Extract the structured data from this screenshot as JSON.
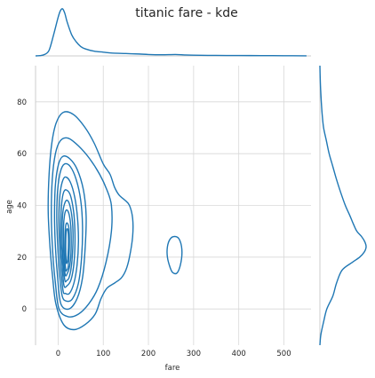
{
  "chart_data": {
    "type": "kde-joint",
    "title": "titanic fare - kde",
    "xlabel": "fare",
    "ylabel": "age",
    "xlim": [
      -50,
      560
    ],
    "ylim": [
      -14,
      94
    ],
    "xticks": [
      0,
      100,
      200,
      300,
      400,
      500
    ],
    "yticks": [
      0,
      20,
      40,
      60,
      80
    ],
    "grid": true,
    "color": "#1f77b4",
    "contours": [
      {
        "level": 1,
        "points": [
          [
            -5,
            2
          ],
          [
            -12,
            12
          ],
          [
            -18,
            24
          ],
          [
            -22,
            38
          ],
          [
            -20,
            52
          ],
          [
            -14,
            64
          ],
          [
            -4,
            72
          ],
          [
            12,
            76
          ],
          [
            35,
            75
          ],
          [
            60,
            70
          ],
          [
            80,
            64
          ],
          [
            100,
            56
          ],
          [
            115,
            52
          ],
          [
            125,
            47
          ],
          [
            135,
            44
          ],
          [
            148,
            42
          ],
          [
            158,
            40
          ],
          [
            165,
            35
          ],
          [
            165,
            28
          ],
          [
            158,
            20
          ],
          [
            150,
            15
          ],
          [
            140,
            12
          ],
          [
            125,
            10
          ],
          [
            108,
            8
          ],
          [
            95,
            4
          ],
          [
            82,
            -2
          ],
          [
            60,
            -6
          ],
          [
            35,
            -8
          ],
          [
            12,
            -6
          ]
        ]
      },
      {
        "level": 2,
        "points": [
          [
            2,
            0
          ],
          [
            -6,
            10
          ],
          [
            -12,
            22
          ],
          [
            -15,
            36
          ],
          [
            -13,
            50
          ],
          [
            -6,
            60
          ],
          [
            5,
            65
          ],
          [
            22,
            66
          ],
          [
            45,
            63
          ],
          [
            70,
            58
          ],
          [
            92,
            52
          ],
          [
            108,
            46
          ],
          [
            118,
            40
          ],
          [
            118,
            30
          ],
          [
            106,
            18
          ],
          [
            88,
            8
          ],
          [
            68,
            2
          ],
          [
            45,
            -2
          ],
          [
            22,
            -3
          ]
        ]
      },
      {
        "level": 3,
        "points": [
          [
            6,
            2
          ],
          [
            -1,
            12
          ],
          [
            -6,
            24
          ],
          [
            -8,
            36
          ],
          [
            -6,
            48
          ],
          [
            1,
            56
          ],
          [
            11,
            59
          ],
          [
            26,
            58
          ],
          [
            42,
            54
          ],
          [
            56,
            46
          ],
          [
            62,
            36
          ],
          [
            60,
            24
          ],
          [
            54,
            12
          ],
          [
            42,
            4
          ],
          [
            24,
            0
          ]
        ]
      },
      {
        "level": 4,
        "points": [
          [
            9,
            5
          ],
          [
            3,
            14
          ],
          [
            -1,
            25
          ],
          [
            -3,
            36
          ],
          [
            -1,
            46
          ],
          [
            5,
            53
          ],
          [
            14,
            56
          ],
          [
            27,
            55
          ],
          [
            40,
            50
          ],
          [
            50,
            42
          ],
          [
            54,
            32
          ],
          [
            52,
            20
          ],
          [
            45,
            10
          ],
          [
            32,
            4
          ],
          [
            19,
            3
          ]
        ]
      },
      {
        "level": 5,
        "points": [
          [
            11,
            7
          ],
          [
            6,
            16
          ],
          [
            3,
            26
          ],
          [
            2,
            36
          ],
          [
            4,
            44
          ],
          [
            9,
            49
          ],
          [
            16,
            51
          ],
          [
            27,
            49
          ],
          [
            37,
            43
          ],
          [
            43,
            35
          ],
          [
            45,
            26
          ],
          [
            42,
            17
          ],
          [
            35,
            10
          ],
          [
            25,
            6
          ],
          [
            16,
            6
          ]
        ]
      },
      {
        "level": 6,
        "points": [
          [
            13,
            9
          ],
          [
            9,
            17
          ],
          [
            6,
            26
          ],
          [
            6,
            34
          ],
          [
            8,
            41
          ],
          [
            12,
            45
          ],
          [
            18,
            46
          ],
          [
            27,
            44
          ],
          [
            34,
            38
          ],
          [
            37,
            31
          ],
          [
            37,
            23
          ],
          [
            34,
            16
          ],
          [
            28,
            11
          ],
          [
            20,
            9
          ]
        ]
      },
      {
        "level": 7,
        "points": [
          [
            15,
            11
          ],
          [
            11,
            18
          ],
          [
            9,
            26
          ],
          [
            9,
            33
          ],
          [
            11,
            38
          ],
          [
            15,
            41
          ],
          [
            20,
            42
          ],
          [
            26,
            40
          ],
          [
            31,
            35
          ],
          [
            33,
            29
          ],
          [
            32,
            22
          ],
          [
            29,
            16
          ],
          [
            24,
            12
          ],
          [
            19,
            11
          ]
        ]
      },
      {
        "level": 8,
        "points": [
          [
            16,
            13
          ],
          [
            13,
            19
          ],
          [
            12,
            26
          ],
          [
            12,
            32
          ],
          [
            14,
            36
          ],
          [
            17,
            38
          ],
          [
            21,
            38
          ],
          [
            25,
            36
          ],
          [
            28,
            32
          ],
          [
            29,
            26
          ],
          [
            28,
            20
          ],
          [
            25,
            16
          ],
          [
            21,
            14
          ]
        ]
      },
      {
        "level": 9,
        "points": [
          [
            17,
            15
          ],
          [
            15,
            20
          ],
          [
            15,
            26
          ],
          [
            16,
            31
          ],
          [
            18,
            33
          ],
          [
            21,
            33
          ],
          [
            24,
            31
          ],
          [
            25,
            26
          ],
          [
            24,
            20
          ],
          [
            22,
            16
          ],
          [
            19,
            15
          ]
        ]
      },
      {
        "level": 10,
        "points": [
          [
            18,
            18
          ],
          [
            17,
            22
          ],
          [
            17,
            27
          ],
          [
            18,
            30
          ],
          [
            20,
            31
          ],
          [
            22,
            30
          ],
          [
            23,
            26
          ],
          [
            22,
            21
          ],
          [
            20,
            18
          ]
        ]
      },
      {
        "level": 11,
        "points": [
          [
            248,
            16
          ],
          [
            242,
            20
          ],
          [
            242,
            24
          ],
          [
            248,
            27
          ],
          [
            258,
            28
          ],
          [
            268,
            27
          ],
          [
            274,
            23
          ],
          [
            272,
            18
          ],
          [
            264,
            14
          ],
          [
            254,
            14
          ]
        ]
      }
    ],
    "marginal_x_kde": {
      "x": [
        -50,
        -40,
        -30,
        -20,
        -10,
        0,
        5,
        10,
        15,
        20,
        30,
        40,
        50,
        60,
        80,
        100,
        120,
        150,
        180,
        200,
        230,
        260,
        280,
        300,
        350,
        400,
        450,
        500,
        550
      ],
      "density": [
        0,
        0.005,
        0.03,
        0.12,
        0.45,
        0.82,
        0.96,
        1.0,
        0.9,
        0.72,
        0.45,
        0.3,
        0.2,
        0.15,
        0.1,
        0.08,
        0.06,
        0.05,
        0.04,
        0.03,
        0.025,
        0.03,
        0.02,
        0.015,
        0.01,
        0.008,
        0.006,
        0.004,
        0.002
      ]
    },
    "marginal_y_kde": {
      "y": [
        -14,
        -10,
        -5,
        0,
        5,
        10,
        15,
        18,
        20,
        22,
        24,
        26,
        28,
        30,
        33,
        36,
        40,
        45,
        50,
        55,
        60,
        65,
        70,
        75,
        80,
        85,
        90,
        94
      ],
      "density": [
        0,
        0.02,
        0.08,
        0.15,
        0.28,
        0.36,
        0.48,
        0.7,
        0.86,
        0.96,
        1.0,
        0.97,
        0.9,
        0.8,
        0.72,
        0.65,
        0.55,
        0.45,
        0.36,
        0.28,
        0.2,
        0.14,
        0.08,
        0.05,
        0.03,
        0.015,
        0.005,
        0
      ]
    }
  }
}
